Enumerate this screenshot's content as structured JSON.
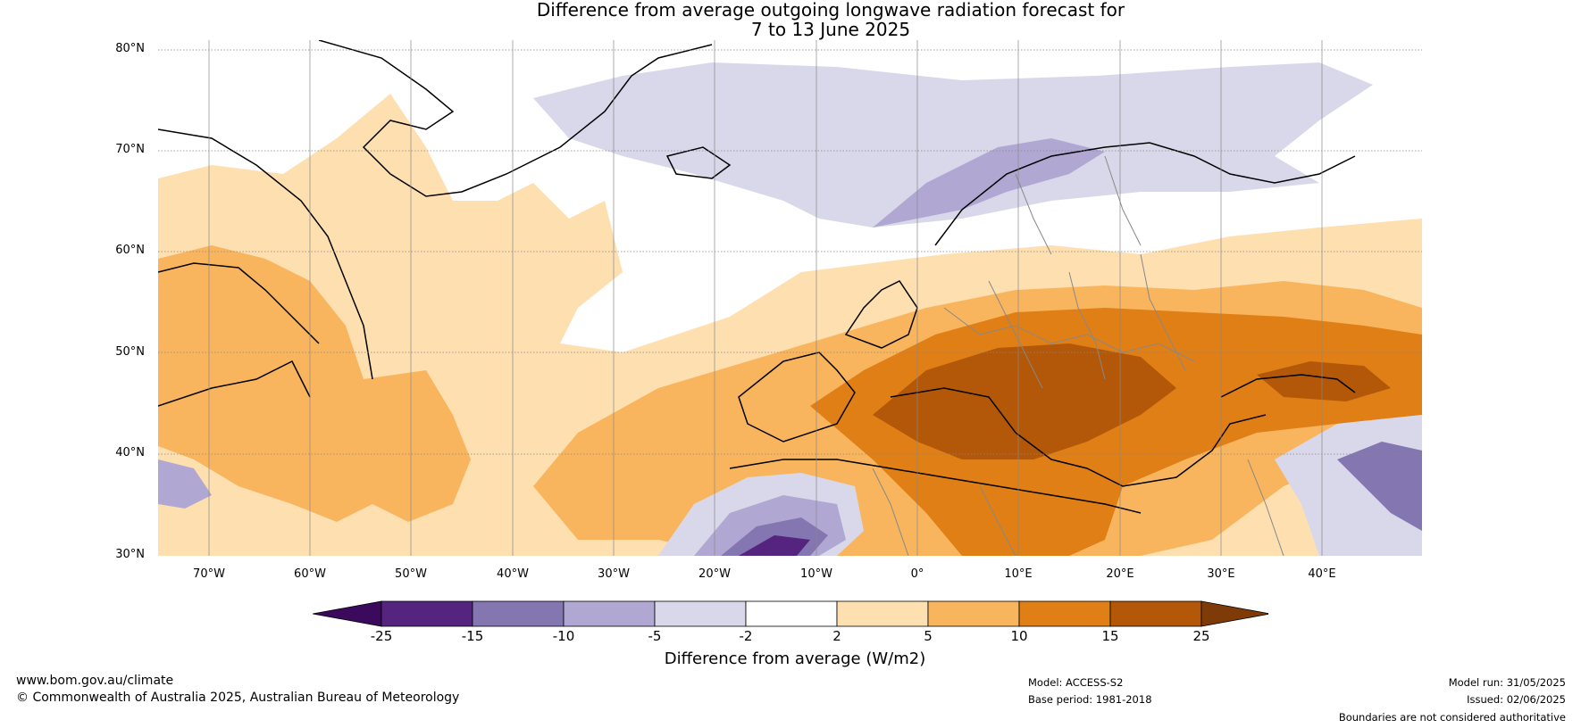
{
  "title": {
    "line1": "Difference from average outgoing longwave radiation forecast for",
    "line2": "7 to 13 June 2025"
  },
  "map": {
    "lat_labels": [
      "80°N",
      "70°N",
      "60°N",
      "50°N",
      "40°N",
      "30°N"
    ],
    "lon_labels": [
      "70°W",
      "60°W",
      "50°W",
      "40°W",
      "30°W",
      "20°W",
      "10°W",
      "0°",
      "10°E",
      "20°E",
      "30°E",
      "40°E"
    ]
  },
  "colorbar": {
    "title": "Difference from average (W/m2)",
    "ticks": [
      "-25",
      "-15",
      "-10",
      "-5",
      "-2",
      "2",
      "5",
      "10",
      "15",
      "25"
    ],
    "colors": [
      "#3b0a5c",
      "#54247f",
      "#8476b0",
      "#b0a8d2",
      "#d8d8ea",
      "#ffffff",
      "#fddfb0",
      "#f9b55e",
      "#e07f16",
      "#b35808",
      "#7f3b07"
    ]
  },
  "footer": {
    "website": "www.bom.gov.au/climate",
    "copyright": "© Commonwealth of Australia 2025, Australian Bureau of Meteorology",
    "model": "Model: ACCESS-S2",
    "base_period": "Base period: 1981-2018",
    "model_run": "Model run: 31/05/2025",
    "issued": "Issued: 02/06/2025",
    "disclaimer": "Boundaries are not considered authoritative"
  }
}
